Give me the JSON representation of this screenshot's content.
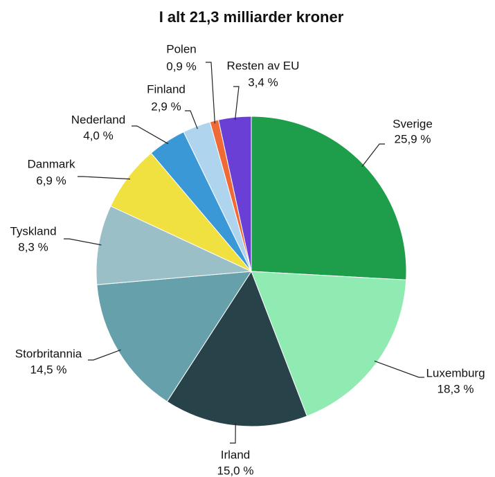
{
  "chart_data": {
    "type": "pie",
    "title": "I alt 21,3 milliarder kroner",
    "categories": [
      "Sverige",
      "Luxemburg",
      "Irland",
      "Storbritannia",
      "Tyskland",
      "Danmark",
      "Nederland",
      "Finland",
      "Polen",
      "Resten av EU"
    ],
    "values": [
      25.9,
      18.3,
      15.0,
      14.5,
      8.3,
      6.9,
      4.0,
      2.9,
      0.9,
      3.4
    ],
    "value_labels": [
      "25,9 %",
      "18,3 %",
      "15,0 %",
      "14,5 %",
      "8,3 %",
      "6,9 %",
      "4,0 %",
      "2,9 %",
      "0,9 %",
      "3,4 %"
    ],
    "colors": [
      "#1e9e4a",
      "#90ebb3",
      "#284249",
      "#66a0aa",
      "#9bbfc7",
      "#f0e040",
      "#3a98d6",
      "#aed4ee",
      "#f06a35",
      "#6a3fd6"
    ]
  }
}
